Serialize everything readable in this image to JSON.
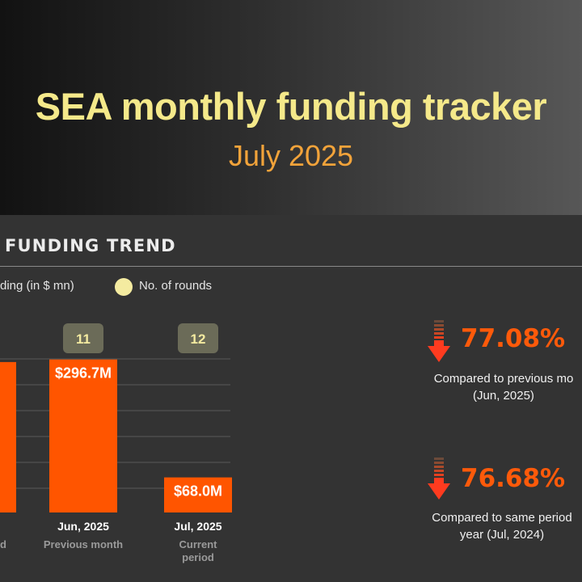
{
  "header": {
    "title": "SEA monthly funding tracker",
    "subtitle": "July 2025"
  },
  "section": {
    "title": "FUNDING TREND"
  },
  "legend": {
    "funding_label": "ding (in $ mn)",
    "rounds_label": "No. of rounds"
  },
  "colors": {
    "bar": "#ff5500",
    "rounds_badge": "#6b6b58",
    "title": "#f5e98a",
    "subtitle": "#f2a33a",
    "metric": "#ff5a0a",
    "arrow": "#ff3b1f"
  },
  "chart_data": {
    "type": "bar",
    "title": "FUNDING TREND",
    "categories": [
      "",
      "Jun, 2025",
      "Jul, 2025"
    ],
    "category_sublabels": [
      "d",
      "Previous month",
      "Current period"
    ],
    "series": [
      {
        "name": "Funding (in $ mn)",
        "values": [
          291.7,
          296.7,
          68.0
        ],
        "labels": [
          "",
          "$296.7M",
          "$68.0M"
        ]
      },
      {
        "name": "No. of rounds",
        "values": [
          null,
          11,
          12
        ]
      }
    ],
    "ylim": [
      0,
      300
    ],
    "grid": true
  },
  "metrics": [
    {
      "value": "77.08%",
      "direction": "down",
      "caption_line1": "Compared to previous mo",
      "caption_line2": "(Jun, 2025)"
    },
    {
      "value": "76.68%",
      "direction": "down",
      "caption_line1": "Compared to same period",
      "caption_line2": "year (Jul, 2024)"
    }
  ]
}
